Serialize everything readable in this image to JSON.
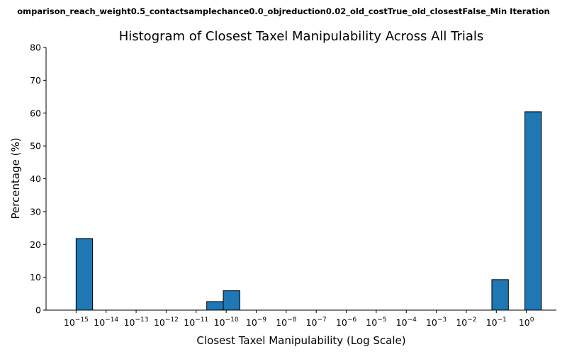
{
  "suptitle": "omparison_reach_weight0.5_contactsamplechance0.0_objreduction0.02_old_costTrue_old_closestFalse_Min Iteration",
  "chart_data": {
    "type": "bar",
    "title": "Histogram of Closest Taxel Manipulability Across All Trials",
    "xlabel": "Closest Taxel Manipulability (Log Scale)",
    "ylabel": "Percentage (%)",
    "xscale": "log",
    "xlim": [
      1e-16,
      10
    ],
    "ylim": [
      0,
      80
    ],
    "yticks": [
      0,
      10,
      20,
      30,
      40,
      50,
      60,
      70,
      80
    ],
    "xtick_exponents": [
      -15,
      -14,
      -13,
      -12,
      -11,
      -10,
      -9,
      -8,
      -7,
      -6,
      -5,
      -4,
      -3,
      -2,
      -1,
      0
    ],
    "grid": false,
    "bins": [
      {
        "x_min": 1e-15,
        "x_max": 3.55e-15,
        "value": 21.8
      },
      {
        "x_min": 2.25e-11,
        "x_max": 8e-11,
        "value": 2.6
      },
      {
        "x_min": 8e-11,
        "x_max": 2.85e-10,
        "value": 5.9
      },
      {
        "x_min": 0.0709,
        "x_max": 0.252,
        "value": 9.3
      },
      {
        "x_min": 0.894,
        "x_max": 3.17,
        "value": 60.4
      }
    ]
  }
}
